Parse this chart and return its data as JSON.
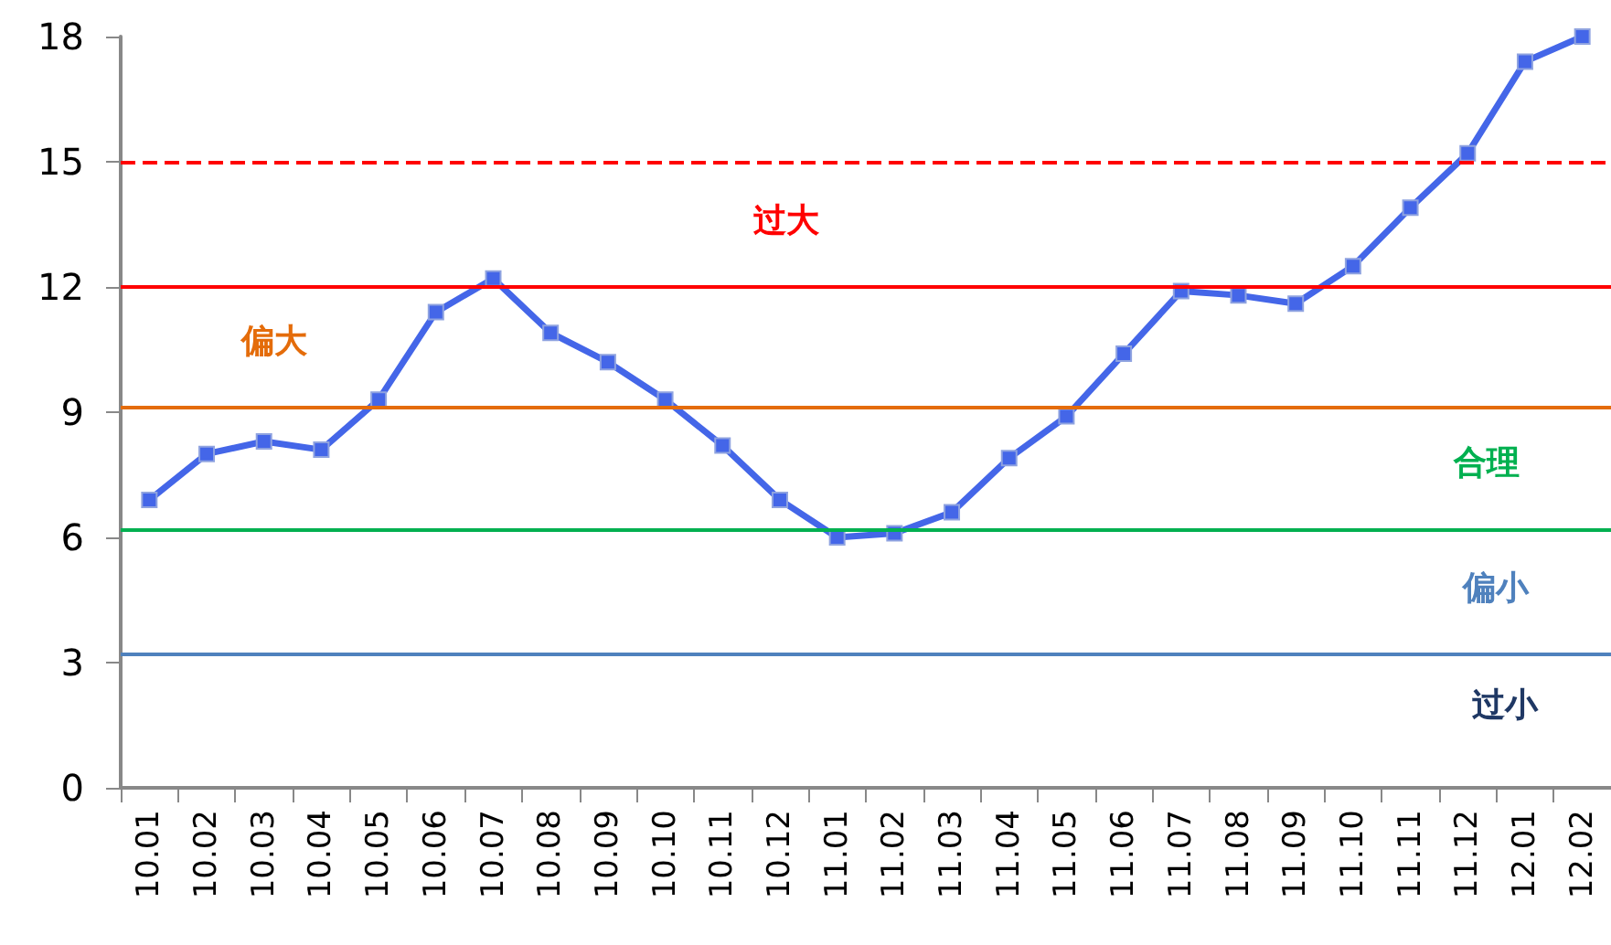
{
  "chart_data": {
    "type": "line",
    "categories": [
      "10.01",
      "10.02",
      "10.03",
      "10.04",
      "10.05",
      "10.06",
      "10.07",
      "10.08",
      "10.09",
      "10.10",
      "10.11",
      "10.12",
      "11.01",
      "11.02",
      "11.03",
      "11.04",
      "11.05",
      "11.06",
      "11.07",
      "11.08",
      "11.09",
      "11.10",
      "11.11",
      "11.12",
      "12.01",
      "12.02"
    ],
    "series": [
      {
        "color": "#4466e8",
        "values": [
          6.9,
          8.0,
          8.3,
          8.1,
          9.3,
          11.4,
          12.2,
          10.9,
          10.2,
          9.3,
          8.2,
          6.9,
          6.0,
          6.1,
          6.6,
          7.9,
          8.9,
          10.4,
          11.9,
          11.8,
          11.6,
          12.5,
          13.9,
          15.2,
          17.4,
          18
        ]
      }
    ],
    "ylim": [
      0,
      18
    ],
    "yticks": [
      0,
      3,
      6,
      9,
      12,
      15,
      18
    ],
    "grid": false,
    "marker": "square",
    "line_style": "solid",
    "ref_lines": [
      {
        "axis": "y",
        "value": 15,
        "color": "#ff0000",
        "line_style": "dashed"
      },
      {
        "axis": "y",
        "value": 12,
        "color": "#ff0000",
        "line_style": "solid",
        "label": "过大"
      },
      {
        "axis": "y",
        "value": 9.1,
        "color": "#e46c0a",
        "line_style": "solid",
        "label": "偏大"
      },
      {
        "axis": "y",
        "value": 6.2,
        "color": "#00b050",
        "line_style": "solid",
        "label": "合理"
      },
      {
        "axis": "y",
        "value": 3.2,
        "color": "#4f81bd",
        "line_style": "solid",
        "label": "偏小"
      }
    ],
    "annotations": [
      "过小"
    ]
  }
}
